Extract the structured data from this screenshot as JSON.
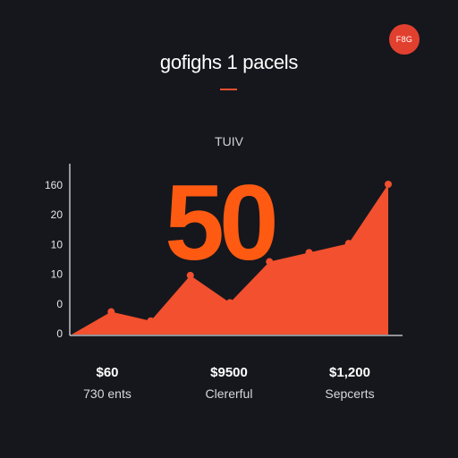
{
  "header": {
    "title": "gofighs 1 pacels",
    "badge": "F8G",
    "subtitle": "TUIV"
  },
  "colors": {
    "background": "#15171d",
    "accent": "#f2502e",
    "big_number": "#ff5a12",
    "badge": "#e2402f"
  },
  "highlight": {
    "value": "50"
  },
  "chart_data": {
    "type": "area",
    "x": [
      0,
      1,
      2,
      3,
      4,
      5,
      6,
      7,
      8
    ],
    "values": [
      0,
      5,
      3,
      13,
      7,
      16,
      18,
      20,
      33
    ],
    "y_ticks": [
      "0",
      "0",
      "10",
      "10",
      "20",
      "160"
    ],
    "grid": false,
    "title": "gofighs 1 pacels",
    "subtitle": "TUIV"
  },
  "stats": [
    {
      "value": "$60",
      "label": "730 ents"
    },
    {
      "value": "$9500",
      "label": "Clererful"
    },
    {
      "value": "$1,200",
      "label": "Sepcerts"
    }
  ]
}
